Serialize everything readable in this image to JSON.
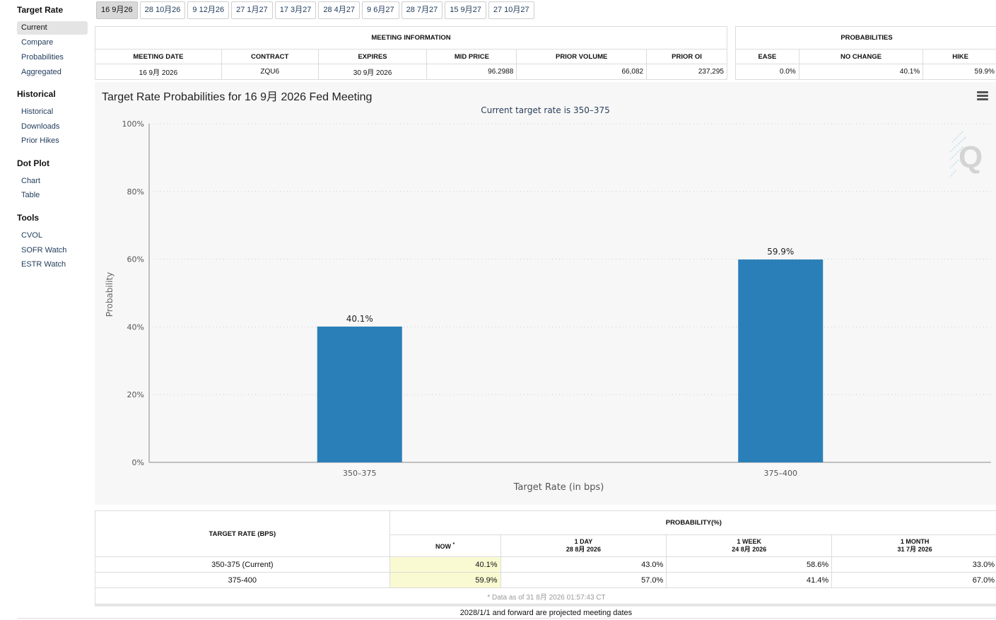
{
  "sidebar": {
    "sections": [
      {
        "title": "Target Rate",
        "items": [
          "Current",
          "Compare",
          "Probabilities",
          "Aggregated"
        ]
      },
      {
        "title": "Historical",
        "items": [
          "Historical",
          "Downloads",
          "Prior Hikes"
        ]
      },
      {
        "title": "Dot Plot",
        "items": [
          "Chart",
          "Table"
        ]
      },
      {
        "title": "Tools",
        "items": [
          "CVOL",
          "SOFR Watch",
          "ESTR Watch"
        ]
      }
    ],
    "active": "Current"
  },
  "tabs": [
    "16 9月26",
    "28 10月26",
    "9 12月26",
    "27 1月27",
    "17 3月27",
    "28 4月27",
    "9 6月27",
    "28 7月27",
    "15 9月27",
    "27 10月27"
  ],
  "active_tab": "16 9月26",
  "meeting_info": {
    "header": "MEETING INFORMATION",
    "columns": [
      "MEETING DATE",
      "CONTRACT",
      "EXPIRES",
      "MID PRICE",
      "PRIOR VOLUME",
      "PRIOR OI"
    ],
    "row": [
      "16 9月 2026",
      "ZQU6",
      "30 9月 2026",
      "96.2988",
      "66,082",
      "237,295"
    ]
  },
  "probabilities": {
    "header": "PROBABILITIES",
    "columns": [
      "EASE",
      "NO CHANGE",
      "HIKE"
    ],
    "row": [
      "0.0%",
      "40.1%",
      "59.9%"
    ]
  },
  "chart_title": "Target Rate Probabilities for 16 9月 2026 Fed Meeting",
  "chart_subtitle": "Current target rate is 350–375",
  "chart_data": {
    "type": "bar",
    "title": "Target Rate Probabilities for 16 9月 2026 Fed Meeting",
    "subtitle": "Current target rate is 350–375",
    "categories": [
      "350–375",
      "375–400"
    ],
    "values": [
      40.1,
      59.9
    ],
    "value_labels": [
      "40.1%",
      "59.9%"
    ],
    "xlabel": "Target Rate (in bps)",
    "ylabel": "Probability",
    "ylim": [
      0,
      100
    ],
    "yticks": [
      "0%",
      "20%",
      "40%",
      "60%",
      "80%",
      "100%"
    ],
    "grid": true,
    "bar_color": "#2a7fb8"
  },
  "bottom_table": {
    "target_header": "TARGET RATE (BPS)",
    "prob_header": "PROBABILITY(%)",
    "now_label": "NOW",
    "now_mark": "*",
    "periods": [
      {
        "label": "1 DAY",
        "date": "28 8月 2026"
      },
      {
        "label": "1 WEEK",
        "date": "24 8月 2026"
      },
      {
        "label": "1 MONTH",
        "date": "31 7月 2026"
      }
    ],
    "rows": [
      {
        "rate": "350-375 (Current)",
        "now": "40.1%",
        "day": "43.0%",
        "week": "58.6%",
        "month": "33.0%"
      },
      {
        "rate": "375-400",
        "now": "59.9%",
        "day": "57.0%",
        "week": "41.4%",
        "month": "67.0%"
      }
    ],
    "footnote": "* Data as of 31 8月 2026 01:57:43 CT"
  },
  "projection_note": "2028/1/1 and forward are projected meeting dates"
}
